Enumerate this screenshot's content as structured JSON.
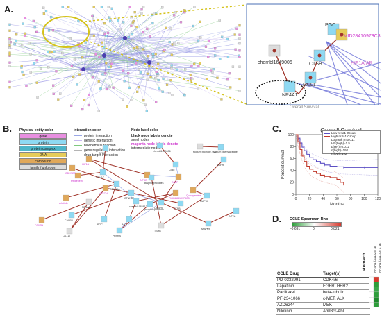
{
  "panels": {
    "a": "A.",
    "b": "B.",
    "c": "C.",
    "d": "D."
  },
  "panel_a": {
    "zoom_labels": [
      {
        "text": "PGC",
        "color": "#333333"
      },
      {
        "text": "PMID28410973C3",
        "color": "#cc33cc"
      },
      {
        "text": "chembl1649006",
        "color": "#333333"
      },
      {
        "text": "CTSB",
        "color": "#333333"
      },
      {
        "text": "HIF1A/AR",
        "color": "#cc66cc"
      },
      {
        "text": "MCL1",
        "color": "#333333"
      },
      {
        "text": "NR4A1",
        "color": "#333333"
      }
    ],
    "cut_caption": "Overall Survival"
  },
  "panel_b": {
    "legend": {
      "physical_entity_title": "Physical entity color",
      "entities": [
        {
          "label": "gene",
          "color": "#e88fe0"
        },
        {
          "label": "protein",
          "color": "#8ed9f2"
        },
        {
          "label": "protein complex",
          "color": "#4fb6c9"
        },
        {
          "label": "DNA",
          "color": "#e6cc5a"
        },
        {
          "label": "compound",
          "color": "#e0a85a"
        },
        {
          "label": "family / unknown",
          "color": "#dcdcdc"
        }
      ],
      "interaction_title": "Interaction color",
      "interactions": [
        {
          "label": "protein interaction",
          "color": "#9aa7e6"
        },
        {
          "label": "genetic interaction",
          "color": "#c8b8f0"
        },
        {
          "label": "biochemical reaction",
          "color": "#7ec87e"
        },
        {
          "label": "gene regulatory interaction",
          "color": "#b4b4b4"
        },
        {
          "label": "drug-target interaction",
          "color": "#a0342a"
        }
      ],
      "node_label_title": "Node label color",
      "node_label_lines": [
        "black node labels denote",
        "seed nodes",
        "magenta node labels denote",
        "intermediate nodes"
      ]
    },
    "nodes": [
      {
        "label": "CTSZ",
        "magenta": false
      },
      {
        "label": "chembl1649006",
        "magenta": false
      },
      {
        "label": "sodium bromate / sodium phenylacetate",
        "magenta": false
      },
      {
        "label": "AR",
        "magenta": false
      },
      {
        "label": "NGFR",
        "magenta": false
      },
      {
        "label": "Cdk5",
        "magenta": false
      },
      {
        "label": "HIF1A",
        "magenta": true
      },
      {
        "label": "tebipenem",
        "magenta": true
      },
      {
        "label": "erlotinib",
        "magenta": true
      },
      {
        "label": "CDKN2C",
        "magenta": true
      },
      {
        "label": "ADH1C",
        "magenta": false
      },
      {
        "label": "CASP8",
        "magenta": false
      },
      {
        "label": "NFKB",
        "magenta": true
      },
      {
        "label": "Bisphosphonates",
        "magenta": false
      },
      {
        "label": "EGFR",
        "magenta": true
      },
      {
        "label": "CDKN1A",
        "magenta": false
      },
      {
        "label": "CTNNB1",
        "magenta": false
      },
      {
        "label": "PMID28410973C3",
        "magenta": true
      },
      {
        "label": "MAP3K",
        "magenta": false
      },
      {
        "label": "cyclophosphamide",
        "magenta": false
      },
      {
        "label": "chembl1983812",
        "magenta": false
      },
      {
        "label": "CASP9",
        "magenta": false
      },
      {
        "label": "NR4A1",
        "magenta": false
      },
      {
        "label": "FOXO1",
        "magenta": true
      },
      {
        "label": "PGC",
        "magenta": false
      },
      {
        "label": "MCL1",
        "magenta": false
      },
      {
        "label": "PPARA",
        "magenta": false
      },
      {
        "label": "TSHB",
        "magenta": false
      },
      {
        "label": "MAPK9",
        "magenta": false
      },
      {
        "label": "CTSB",
        "magenta": false
      },
      {
        "label": "NOTCH1",
        "magenta": true
      },
      {
        "label": "Quinapamine",
        "magenta": true
      },
      {
        "label": "NR4A3",
        "magenta": false
      },
      {
        "label": "NFYA",
        "magenta": false
      }
    ]
  },
  "panel_c": {
    "chart_data": {
      "type": "line",
      "title": "Overall Survival",
      "xlabel": "Months",
      "ylabel": "Percent survival",
      "xlim": [
        0,
        120
      ],
      "ylim": [
        0,
        100
      ],
      "xticks": [
        0,
        20,
        40,
        60,
        80,
        100,
        120
      ],
      "yticks": [
        0,
        20,
        40,
        60,
        80,
        100
      ],
      "legend_placement": "top-right",
      "legend": [
        "Low nr4a1 Group",
        "High nr4a1 Group",
        "Logrank p=0.011",
        "HR(high)=1.5",
        "p(HR)=0.012",
        "n(high)=192",
        "n(low)=192"
      ],
      "series": [
        {
          "name": "Low nr4a1 Group",
          "color": "#5b4fc4",
          "x": [
            0,
            3,
            6,
            9,
            12,
            16,
            20,
            25,
            30,
            36,
            42,
            50,
            60,
            70,
            80,
            90,
            100,
            110,
            120
          ],
          "y": [
            100,
            94,
            86,
            79,
            73,
            67,
            62,
            58,
            55,
            52,
            49,
            47,
            46,
            45,
            45,
            45,
            45,
            45,
            45
          ]
        },
        {
          "name": "High nr4a1 Group",
          "color": "#c0392b",
          "x": [
            0,
            3,
            6,
            9,
            12,
            16,
            20,
            25,
            30,
            36,
            42,
            50,
            55,
            60,
            65,
            70
          ],
          "y": [
            100,
            88,
            75,
            64,
            55,
            47,
            42,
            38,
            35,
            32,
            30,
            28,
            28,
            25,
            20,
            15
          ]
        }
      ]
    }
  },
  "panel_d": {
    "colorbar_title": "CCLE Spearman Rho",
    "colorbar_min": "-0.691",
    "colorbar_zero": "0",
    "colorbar_max": "0.821",
    "tissue_label": "stomach",
    "column_headers": [
      "NR4A1 (211325_at",
      "NR4A1 (211143_x_at"
    ],
    "table_headers": {
      "drug": "CCLE Drug",
      "target": "Target(s)"
    },
    "rows": [
      {
        "drug": "PD-0332991",
        "target": "CDK4/6"
      },
      {
        "drug": "Lapatinib",
        "target": "EGFR, HER2"
      },
      {
        "drug": "Paclitaxel",
        "target": "beta-tubulin"
      },
      {
        "drug": "PF-2341066",
        "target": "c-MET, ALK"
      },
      {
        "drug": "AZD6244",
        "target": "MEK"
      },
      {
        "drug": "Nilotinib",
        "target": "Abl/Bcr-Abl"
      }
    ],
    "heat_colors": [
      [
        "#ffffff",
        "#d63a2e"
      ],
      [
        "#ffffff",
        "#2e9e3b"
      ],
      [
        "#ffffff",
        "#3aa84a"
      ],
      [
        "#ffffff",
        "#2e9e3b"
      ],
      [
        "#ffffff",
        "#1e8a2c"
      ],
      [
        "#ffffff",
        "#2e9e3b"
      ]
    ]
  }
}
